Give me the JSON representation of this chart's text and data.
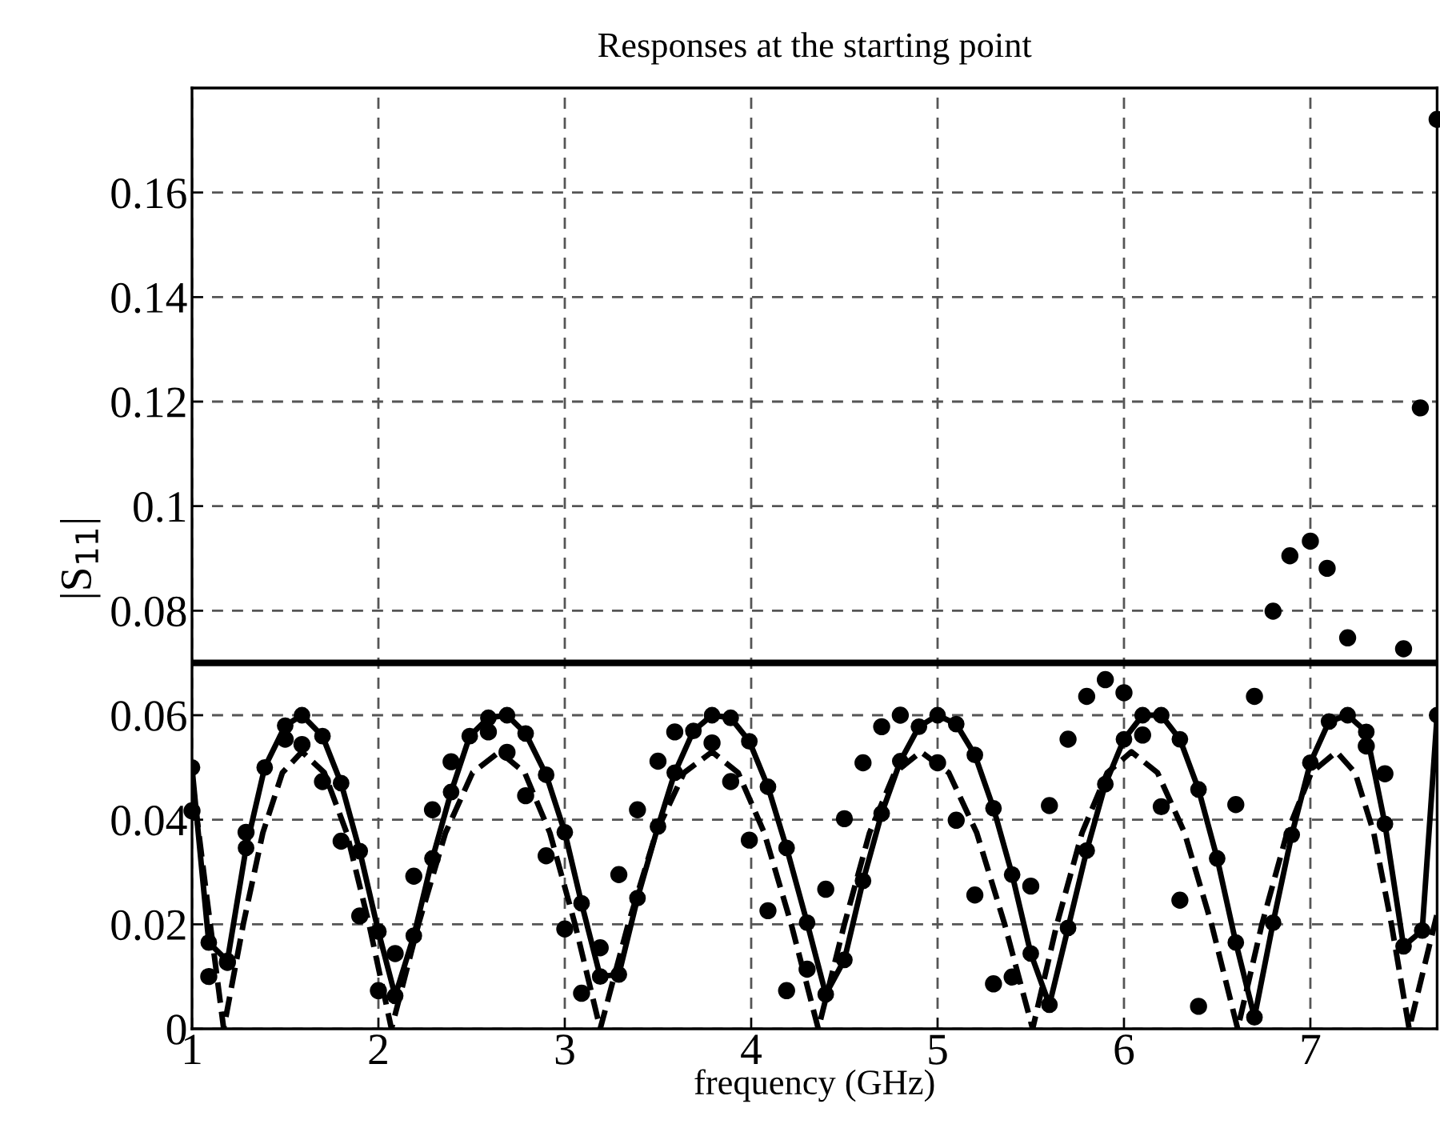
{
  "chart_data": {
    "type": "line",
    "title": "Responses at the starting point",
    "xlabel": "frequency (GHz)",
    "ylabel": "|S$_{11}$|",
    "xlim": [
      1,
      7.68
    ],
    "ylim": [
      0,
      0.18
    ],
    "xticks": [
      1,
      2,
      3,
      4,
      5,
      6,
      7
    ],
    "yticks": [
      0,
      0.02,
      0.04,
      0.06,
      0.08,
      0.1,
      0.12,
      0.14,
      0.16
    ],
    "grid": true,
    "legend": false,
    "ref_lines": [
      {
        "axis": "y",
        "value": 0.07,
        "color": "#000000",
        "line_style": "solid"
      }
    ],
    "series": [
      {
        "color": "#000000",
        "line_style": "solid",
        "marker": "circle",
        "x": [
          1.0,
          1.09,
          1.19,
          1.29,
          1.39,
          1.5,
          1.59,
          1.7,
          1.8,
          1.9,
          2.0,
          2.09,
          2.19,
          2.29,
          2.39,
          2.49,
          2.59,
          2.69,
          2.79,
          2.9,
          3.0,
          3.09,
          3.19,
          3.29,
          3.39,
          3.5,
          3.59,
          3.69,
          3.79,
          3.89,
          3.99,
          4.09,
          4.19,
          4.3,
          4.4,
          4.5,
          4.6,
          4.7,
          4.8,
          4.9,
          5.0,
          5.1,
          5.2,
          5.3,
          5.4,
          5.5,
          5.6,
          5.7,
          5.8,
          5.9,
          6.0,
          6.1,
          6.2,
          6.3,
          6.4,
          6.5,
          6.6,
          6.7,
          6.8,
          6.9,
          7.0,
          7.1,
          7.2,
          7.3,
          7.4,
          7.5,
          7.6,
          7.68
        ],
        "values": [
          0.05,
          0.0165,
          0.013,
          0.0346,
          0.05,
          0.058,
          0.06,
          0.056,
          0.047,
          0.034,
          0.0186,
          0.0063,
          0.0178,
          0.0326,
          0.0453,
          0.056,
          0.0595,
          0.06,
          0.0565,
          0.0486,
          0.0376,
          0.024,
          0.01,
          0.0104,
          0.025,
          0.0387,
          0.049,
          0.057,
          0.06,
          0.0595,
          0.055,
          0.0463,
          0.0346,
          0.0203,
          0.0066,
          0.0132,
          0.0283,
          0.0412,
          0.0512,
          0.0578,
          0.06,
          0.0583,
          0.0524,
          0.0422,
          0.0295,
          0.0144,
          0.0046,
          0.0193,
          0.0341,
          0.0468,
          0.0554,
          0.06,
          0.06,
          0.0554,
          0.0458,
          0.0326,
          0.0165,
          0.0022,
          0.0203,
          0.0371,
          0.0509,
          0.0588,
          0.06,
          0.0568,
          0.0392,
          0.0158,
          0.0188,
          0.06
        ]
      },
      {
        "color": "#000000",
        "line_style": "dashed",
        "marker": "none",
        "x": [
          1.0,
          1.08,
          1.17,
          1.275,
          1.38,
          1.485,
          1.59,
          1.71,
          1.83,
          1.95,
          2.07,
          2.215,
          2.36,
          2.505,
          2.65,
          2.785,
          2.92,
          3.055,
          3.19,
          3.34,
          3.49,
          3.64,
          3.79,
          3.93,
          4.07,
          4.215,
          4.36,
          4.5,
          4.635,
          4.77,
          4.91,
          5.06,
          5.21,
          5.36,
          5.51,
          5.64,
          5.775,
          5.91,
          6.04,
          6.18,
          6.325,
          6.47,
          6.61,
          6.74,
          6.875,
          7.005,
          7.14,
          7.24,
          7.34,
          7.435,
          7.53,
          7.68
        ],
        "values": [
          0.048,
          0.025,
          0,
          0.02,
          0.0375,
          0.049,
          0.053,
          0.049,
          0.0375,
          0.02,
          0,
          0.02,
          0.0375,
          0.049,
          0.053,
          0.049,
          0.0375,
          0.02,
          0,
          0.02,
          0.0375,
          0.049,
          0.053,
          0.049,
          0.0375,
          0.02,
          0,
          0.02,
          0.0375,
          0.049,
          0.053,
          0.049,
          0.0375,
          0.02,
          0,
          0.02,
          0.0375,
          0.049,
          0.053,
          0.049,
          0.0375,
          0.02,
          0,
          0.02,
          0.0375,
          0.049,
          0.053,
          0.049,
          0.0375,
          0.02,
          0,
          0.022
        ]
      },
      {
        "type": "scatter",
        "color": "#000000",
        "marker": "circle",
        "x": [
          1.0,
          1.09,
          1.19,
          1.29,
          1.5,
          1.59,
          1.7,
          1.8,
          1.9,
          2.0,
          2.09,
          2.19,
          2.29,
          2.39,
          2.59,
          2.69,
          2.79,
          2.9,
          3.0,
          3.09,
          3.19,
          3.29,
          3.39,
          3.5,
          3.59,
          3.79,
          3.89,
          3.99,
          4.09,
          4.19,
          4.3,
          4.4,
          4.5,
          4.6,
          4.7,
          4.8,
          5.0,
          5.1,
          5.2,
          5.3,
          5.4,
          5.5,
          5.6,
          5.7,
          5.8,
          5.9,
          6.0,
          6.1,
          6.2,
          6.3,
          6.4,
          6.6,
          6.7,
          6.8,
          6.89,
          7.0,
          7.09,
          7.2,
          7.3,
          7.4,
          7.5,
          7.59,
          7.68
        ],
        "values": [
          0.0417,
          0.01,
          0.0127,
          0.0376,
          0.0554,
          0.0544,
          0.0473,
          0.0359,
          0.0216,
          0.0073,
          0.0144,
          0.0292,
          0.0419,
          0.0511,
          0.0568,
          0.0529,
          0.0446,
          0.0331,
          0.0191,
          0.0068,
          0.0155,
          0.0295,
          0.0419,
          0.0512,
          0.0568,
          0.0547,
          0.0473,
          0.0361,
          0.0226,
          0.0073,
          0.0114,
          0.0267,
          0.0402,
          0.0509,
          0.0578,
          0.06,
          0.0509,
          0.0399,
          0.0256,
          0.0086,
          0.0099,
          0.0273,
          0.0427,
          0.0554,
          0.0636,
          0.0668,
          0.0643,
          0.0562,
          0.0425,
          0.0246,
          0.0043,
          0.0429,
          0.0636,
          0.0799,
          0.0905,
          0.0933,
          0.0881,
          0.0748,
          0.0541,
          0.0488,
          0.0727,
          0.1188,
          0.174
        ]
      }
    ]
  }
}
